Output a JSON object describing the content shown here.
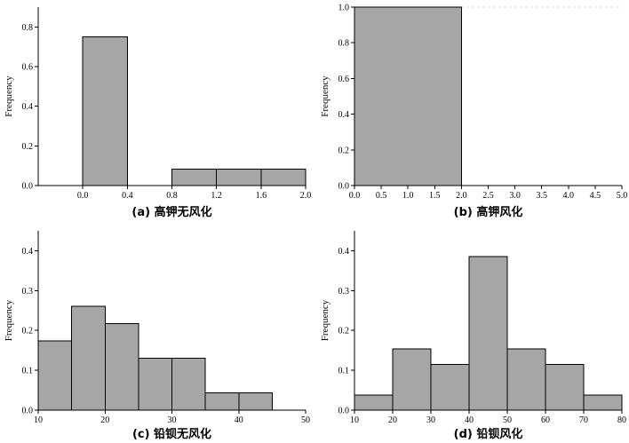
{
  "chart_data": [
    {
      "id": "a",
      "type": "bar",
      "caption": "(a) 高钾无风化",
      "ylabel": "Frequency",
      "xlim": [
        -0.4,
        2.0
      ],
      "ylim": [
        0,
        0.9
      ],
      "xticks": [
        0.0,
        0.4,
        0.8,
        1.2,
        1.6,
        2.0
      ],
      "xtick_labels": [
        "0.0",
        "0.4",
        "0.8",
        "1.2",
        "1.6",
        "2.0"
      ],
      "yticks": [
        0.0,
        0.2,
        0.4,
        0.6,
        0.8
      ],
      "ytick_labels": [
        "0.0",
        "0.2",
        "0.4",
        "0.6",
        "0.8"
      ],
      "bins": [
        {
          "start": 0.0,
          "end": 0.4,
          "value": 0.75
        },
        {
          "start": 0.8,
          "end": 1.2,
          "value": 0.083
        },
        {
          "start": 1.2,
          "end": 1.6,
          "value": 0.083
        },
        {
          "start": 1.6,
          "end": 2.0,
          "value": 0.083
        }
      ]
    },
    {
      "id": "b",
      "type": "bar",
      "caption": "(b) 高钾风化",
      "ylabel": "Frequency",
      "xlim": [
        0.0,
        5.0
      ],
      "ylim": [
        0,
        1.0
      ],
      "xticks": [
        0.0,
        0.5,
        1.0,
        1.5,
        2.0,
        2.5,
        3.0,
        3.5,
        4.0,
        4.5,
        5.0
      ],
      "xtick_labels": [
        "0.0",
        "0.5",
        "1.0",
        "1.5",
        "2.0",
        "2.5",
        "3.0",
        "3.5",
        "4.0",
        "4.5",
        "5.0"
      ],
      "yticks": [
        0.0,
        0.2,
        0.4,
        0.6,
        0.8,
        1.0
      ],
      "ytick_labels": [
        "0.0",
        "0.2",
        "0.4",
        "0.6",
        "0.8",
        "1.0"
      ],
      "reference_line_at_y": 1.0,
      "bins": [
        {
          "start": 0.0,
          "end": 2.0,
          "value": 1.0
        }
      ]
    },
    {
      "id": "c",
      "type": "bar",
      "caption": "(c) 铅钡无风化",
      "ylabel": "Frequency",
      "xlim": [
        10,
        50
      ],
      "ylim": [
        0,
        0.45
      ],
      "xticks": [
        10,
        20,
        30,
        40,
        50
      ],
      "xtick_labels": [
        "10",
        "20",
        "30",
        "40",
        "50"
      ],
      "yticks": [
        0.0,
        0.1,
        0.2,
        0.3,
        0.4
      ],
      "ytick_labels": [
        "0.0",
        "0.1",
        "0.2",
        "0.3",
        "0.4"
      ],
      "bins": [
        {
          "start": 10,
          "end": 15,
          "value": 0.174
        },
        {
          "start": 15,
          "end": 20,
          "value": 0.261
        },
        {
          "start": 20,
          "end": 25,
          "value": 0.217
        },
        {
          "start": 25,
          "end": 30,
          "value": 0.13
        },
        {
          "start": 30,
          "end": 35,
          "value": 0.13
        },
        {
          "start": 35,
          "end": 40,
          "value": 0.043
        },
        {
          "start": 40,
          "end": 45,
          "value": 0.043
        }
      ]
    },
    {
      "id": "d",
      "type": "bar",
      "caption": "(d) 铅钡风化",
      "ylabel": "Frequency",
      "xlim": [
        10,
        80
      ],
      "ylim": [
        0,
        0.45
      ],
      "xticks": [
        10,
        20,
        30,
        40,
        50,
        60,
        70,
        80
      ],
      "xtick_labels": [
        "10",
        "20",
        "30",
        "40",
        "50",
        "60",
        "70",
        "80"
      ],
      "yticks": [
        0.0,
        0.1,
        0.2,
        0.3,
        0.4
      ],
      "ytick_labels": [
        "0.0",
        "0.1",
        "0.2",
        "0.3",
        "0.4"
      ],
      "bins": [
        {
          "start": 10,
          "end": 20,
          "value": 0.038
        },
        {
          "start": 20,
          "end": 30,
          "value": 0.154
        },
        {
          "start": 30,
          "end": 40,
          "value": 0.115
        },
        {
          "start": 40,
          "end": 50,
          "value": 0.385
        },
        {
          "start": 50,
          "end": 60,
          "value": 0.154
        },
        {
          "start": 60,
          "end": 70,
          "value": 0.115
        },
        {
          "start": 70,
          "end": 80,
          "value": 0.038
        }
      ]
    }
  ]
}
